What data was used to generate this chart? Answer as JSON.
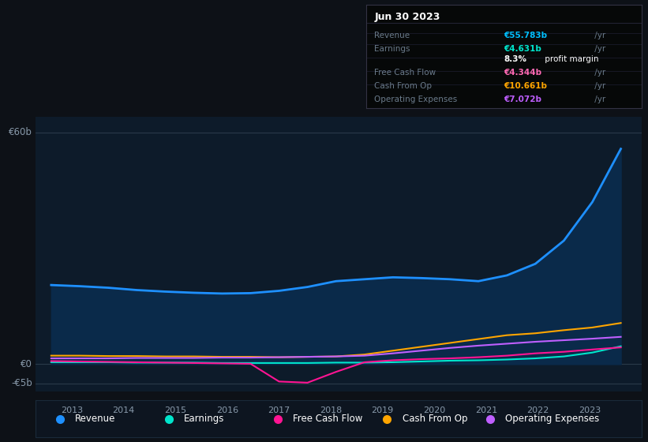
{
  "background_color": "#0d1117",
  "plot_bg_color": "#0d1b2a",
  "title_box": {
    "date": "Jun 30 2023",
    "rows": [
      {
        "label": "Revenue",
        "value": "€55.783b",
        "value_color": "#00bfff"
      },
      {
        "label": "Earnings",
        "value": "€4.631b",
        "value_color": "#00e5cc"
      },
      {
        "label": "",
        "value": "8.3% profit margin",
        "value_color": "#ffffff"
      },
      {
        "label": "Free Cash Flow",
        "value": "€4.344b",
        "value_color": "#ff69b4"
      },
      {
        "label": "Cash From Op",
        "value": "€10.661b",
        "value_color": "#ffa500"
      },
      {
        "label": "Operating Expenses",
        "value": "€7.072b",
        "value_color": "#bf5fff"
      }
    ]
  },
  "y_axis_label_top": "€60b",
  "y_axis_label_zero": "€0",
  "y_axis_label_neg": "-€5b",
  "ylim": [
    -7,
    64
  ],
  "xlim": [
    2012.3,
    2024.0
  ],
  "revenue": [
    20.5,
    20.2,
    19.8,
    19.2,
    18.8,
    18.5,
    18.3,
    18.4,
    19.0,
    20.0,
    21.5,
    22.0,
    22.5,
    22.3,
    22.0,
    21.5,
    23.0,
    26.0,
    32.0,
    42.0,
    55.783
  ],
  "earnings": [
    0.5,
    0.5,
    0.5,
    0.4,
    0.4,
    0.4,
    0.3,
    0.3,
    0.3,
    0.3,
    0.4,
    0.4,
    0.5,
    0.7,
    0.9,
    1.0,
    1.2,
    1.5,
    2.0,
    3.0,
    4.631
  ],
  "free_cash_flow": [
    0.8,
    0.7,
    0.6,
    0.5,
    0.4,
    0.3,
    0.2,
    0.1,
    -4.5,
    -4.8,
    -2.0,
    0.5,
    1.0,
    1.3,
    1.5,
    1.8,
    2.2,
    2.8,
    3.2,
    3.8,
    4.344
  ],
  "cash_from_op": [
    2.2,
    2.2,
    2.1,
    2.1,
    2.0,
    2.0,
    1.9,
    1.9,
    1.8,
    1.9,
    2.0,
    2.5,
    3.5,
    4.5,
    5.5,
    6.5,
    7.5,
    8.0,
    8.8,
    9.5,
    10.661
  ],
  "operating_expenses": [
    1.5,
    1.5,
    1.5,
    1.6,
    1.6,
    1.6,
    1.7,
    1.7,
    1.8,
    1.9,
    2.0,
    2.2,
    2.8,
    3.5,
    4.2,
    4.8,
    5.3,
    5.8,
    6.2,
    6.6,
    7.072
  ],
  "revenue_color": "#1e90ff",
  "earnings_color": "#00e5cc",
  "fcf_color": "#ff1493",
  "cash_op_color": "#ffa500",
  "op_exp_color": "#bf5fff",
  "fill_color": "#0a2a4a",
  "legend_items": [
    {
      "label": "Revenue",
      "color": "#1e90ff"
    },
    {
      "label": "Earnings",
      "color": "#00e5cc"
    },
    {
      "label": "Free Cash Flow",
      "color": "#ff1493"
    },
    {
      "label": "Cash From Op",
      "color": "#ffa500"
    },
    {
      "label": "Operating Expenses",
      "color": "#bf5fff"
    }
  ],
  "x_ticks": [
    2013,
    2014,
    2015,
    2016,
    2017,
    2018,
    2019,
    2020,
    2021,
    2022,
    2023
  ]
}
